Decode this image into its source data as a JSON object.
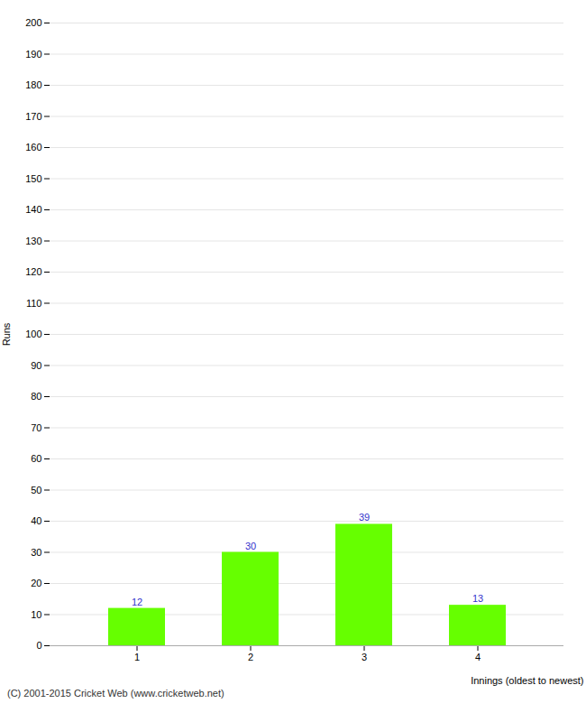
{
  "chart_data": {
    "type": "bar",
    "categories": [
      "1",
      "2",
      "3",
      "4"
    ],
    "values": [
      12,
      30,
      39,
      13
    ],
    "color": "#66ff00",
    "xlabel": "Innings (oldest to newest)",
    "ylabel": "Runs",
    "ylim": [
      0,
      200
    ],
    "yticks": [
      0,
      10,
      20,
      30,
      40,
      50,
      60,
      70,
      80,
      90,
      100,
      110,
      120,
      130,
      140,
      150,
      160,
      170,
      180,
      190,
      200
    ],
    "grid": true,
    "data_labels": true,
    "caption": "(C) 2001-2015 Cricket Web (www.cricketweb.net)"
  }
}
